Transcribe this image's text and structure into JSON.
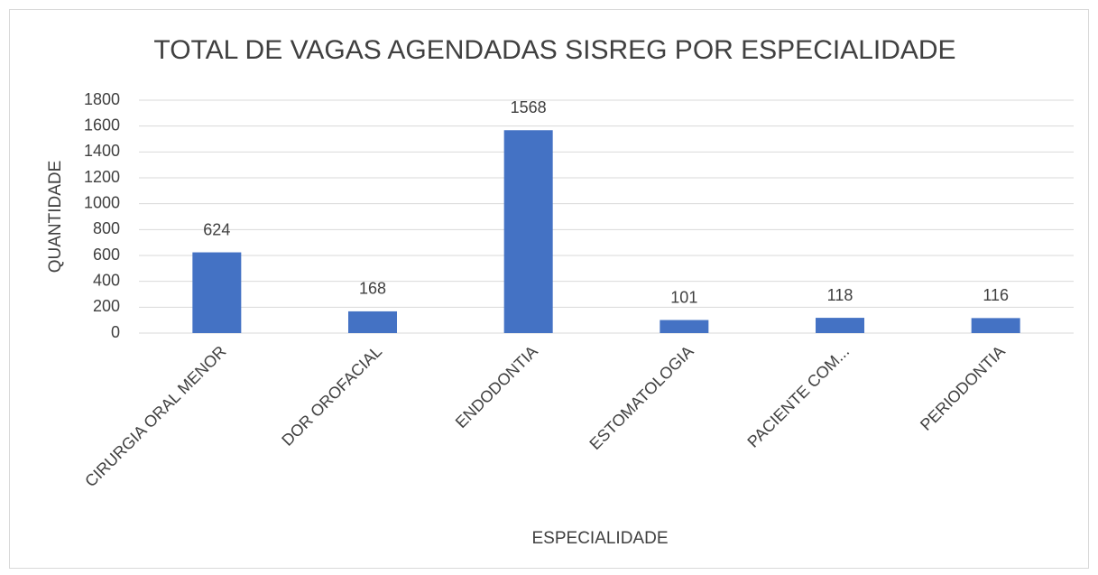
{
  "chart_data": {
    "type": "bar",
    "title": "TOTAL DE VAGAS AGENDADAS SISREG POR ESPECIALIDADE",
    "x_label": "ESPECIALIDADE",
    "y_label": "QUANTIDADE",
    "categories": [
      "CIRURGIA ORAL MENOR",
      "DOR OROFACIAL",
      "ENDODONTIA",
      "ESTOMATOLOGIA",
      "PACIENTE COM...",
      "PERIODONTIA"
    ],
    "values": [
      624,
      168,
      1568,
      101,
      118,
      116
    ],
    "color": "#4472c4",
    "ylim": [
      0,
      1800
    ],
    "yticks": [
      0,
      200,
      400,
      600,
      800,
      1000,
      1200,
      1400,
      1600,
      1800
    ],
    "grid": true
  }
}
